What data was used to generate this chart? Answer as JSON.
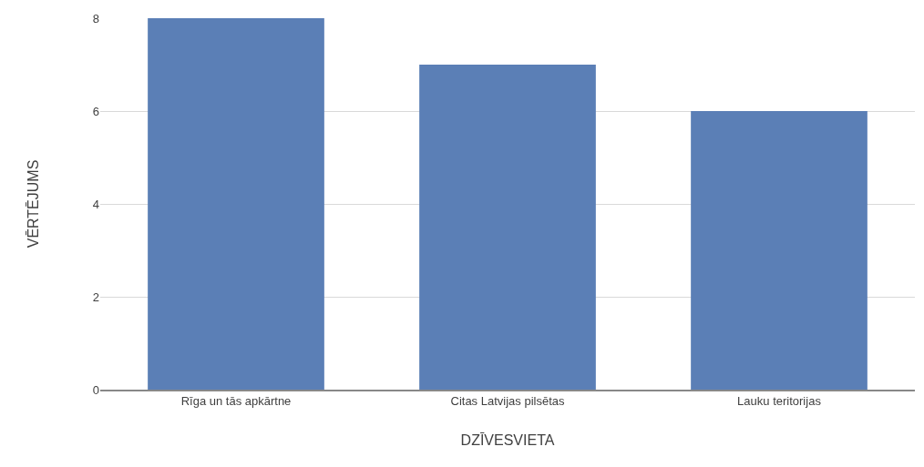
{
  "chart_data": {
    "type": "bar",
    "xlabel": "DZĪVESVIETA",
    "ylabel": "VĒRTĒJUMS",
    "categories": [
      "Rīga un tās apkārtne",
      "Citas Latvijas pilsētas",
      "Lauku teritorijas"
    ],
    "values": [
      8,
      7,
      6
    ],
    "color": "#5b7fb6",
    "ylim": [
      0,
      8
    ],
    "yticks": [
      0,
      2,
      4,
      6,
      8
    ],
    "grid": "y"
  }
}
